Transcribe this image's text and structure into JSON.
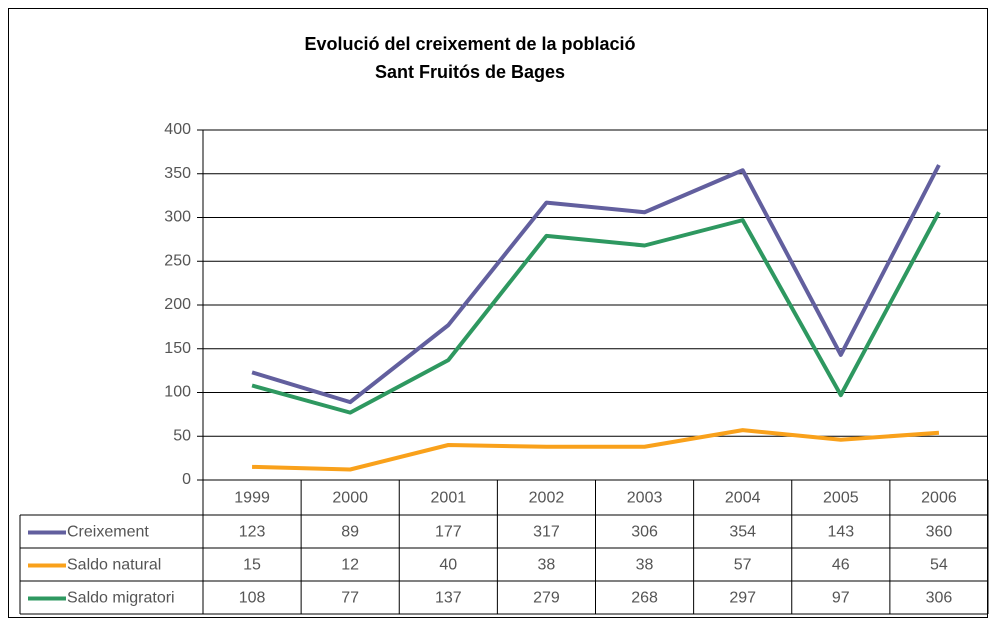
{
  "chart_data": {
    "type": "line",
    "title": "Evolució del creixement de la població",
    "subtitle": "Sant Fruitós de Bages",
    "categories": [
      "1999",
      "2000",
      "2001",
      "2002",
      "2003",
      "2004",
      "2005",
      "2006"
    ],
    "series": [
      {
        "name": "Creixement",
        "color": "#625f9e",
        "values": [
          123,
          89,
          177,
          317,
          306,
          354,
          143,
          360
        ]
      },
      {
        "name": "Saldo natural",
        "color": "#f9a11b",
        "values": [
          15,
          12,
          40,
          38,
          38,
          57,
          46,
          54
        ]
      },
      {
        "name": "Saldo migratori",
        "color": "#2e9860",
        "values": [
          108,
          77,
          137,
          279,
          268,
          297,
          97,
          306
        ]
      }
    ],
    "ylim": [
      0,
      400
    ],
    "yticks": [
      0,
      50,
      100,
      150,
      200,
      250,
      300,
      350,
      400
    ],
    "grid": true
  }
}
